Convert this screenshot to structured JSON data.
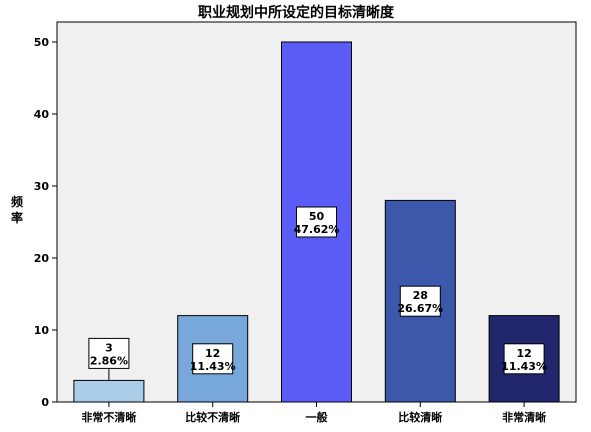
{
  "chart_data": {
    "type": "bar",
    "title": "职业规划中所设定的目标清晰度",
    "xlabel": "",
    "ylabel": "频率",
    "ylim": [
      0,
      52
    ],
    "yticks": [
      0,
      10,
      20,
      30,
      40,
      50
    ],
    "categories": [
      "非常不清晰",
      "比较不清晰",
      "一般",
      "比较清晰",
      "非常清晰"
    ],
    "values": [
      3,
      12,
      50,
      28,
      12
    ],
    "percent_labels": [
      "2.86%",
      "11.43%",
      "47.62%",
      "26.67%",
      "11.43%"
    ],
    "bar_colors": [
      "#aacde9",
      "#78a8d9",
      "#5b5cf6",
      "#3b58ab",
      "#22266d"
    ],
    "plot_background": "#f0f0f0",
    "grid": false,
    "legend": "none"
  }
}
